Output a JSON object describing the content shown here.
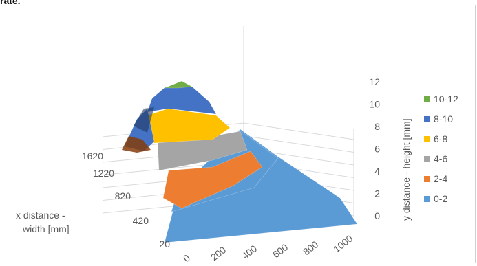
{
  "header": {
    "cut_text": "rate."
  },
  "chart_data": {
    "type": "surface",
    "title": "",
    "xlabel": "x distance - width [mm]",
    "ylabel": "y distance - height [mm]",
    "x_ticks": [
      "20",
      "420",
      "820",
      "1220",
      "1620"
    ],
    "y_ticks": [
      "0",
      "200",
      "400",
      "600",
      "800",
      "1000"
    ],
    "z_ticks": [
      "0",
      "2",
      "4",
      "6",
      "8",
      "10",
      "12"
    ],
    "zlim": [
      0,
      12
    ],
    "grid": true,
    "legend_position": "right",
    "bands": [
      {
        "label": "10-12",
        "range": [
          10,
          12
        ],
        "color": "#70ad47"
      },
      {
        "label": "8-10",
        "range": [
          8,
          10
        ],
        "color": "#4472c4"
      },
      {
        "label": "6-8",
        "range": [
          6,
          8
        ],
        "color": "#ffc000"
      },
      {
        "label": "4-6",
        "range": [
          4,
          6
        ],
        "color": "#a5a5a5"
      },
      {
        "label": "2-4",
        "range": [
          2,
          4
        ],
        "color": "#ed7d31"
      },
      {
        "label": "0-2",
        "range": [
          0,
          2
        ],
        "color": "#5b9bd5"
      }
    ]
  }
}
